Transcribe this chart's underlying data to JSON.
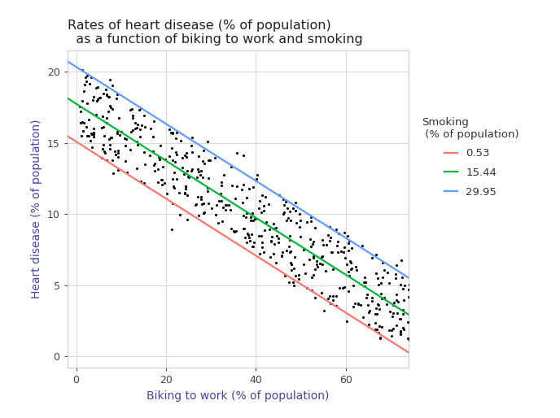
{
  "title_line1": "Rates of heart disease (% of population)",
  "title_line2": "  as a function of biking to work and smoking",
  "xlabel": "Biking to work (% of population)",
  "ylabel": "Heart disease (% of population)",
  "xlim": [
    -2,
    74
  ],
  "ylim": [
    -0.8,
    21.5
  ],
  "xticks": [
    0,
    20,
    40,
    60
  ],
  "yticks": [
    0,
    5,
    10,
    15,
    20
  ],
  "scatter_color": "#000000",
  "scatter_size": 5,
  "regression_intercept": 14.9847,
  "regression_biking": -0.20013,
  "regression_smoking": 0.17832,
  "smoking_levels": [
    0.53,
    15.44,
    29.95
  ],
  "line_colors": [
    "#F8766D",
    "#00BA38",
    "#619CFF"
  ],
  "line_labels": [
    "0.53",
    "15.44",
    "29.95"
  ],
  "legend_title": "Smoking\n (% of population)",
  "n_points": 498,
  "biking_range": [
    0.5,
    74.9
  ],
  "smoking_range": [
    0.5,
    29.9
  ],
  "background_color": "#FFFFFF",
  "panel_background": "#FFFFFF",
  "grid_color": "#D9D9D9",
  "panel_border_color": "#CCCCCC",
  "title_fontsize": 11.5,
  "axis_label_fontsize": 10,
  "tick_fontsize": 9,
  "noise_std": 0.65,
  "seed": 42
}
